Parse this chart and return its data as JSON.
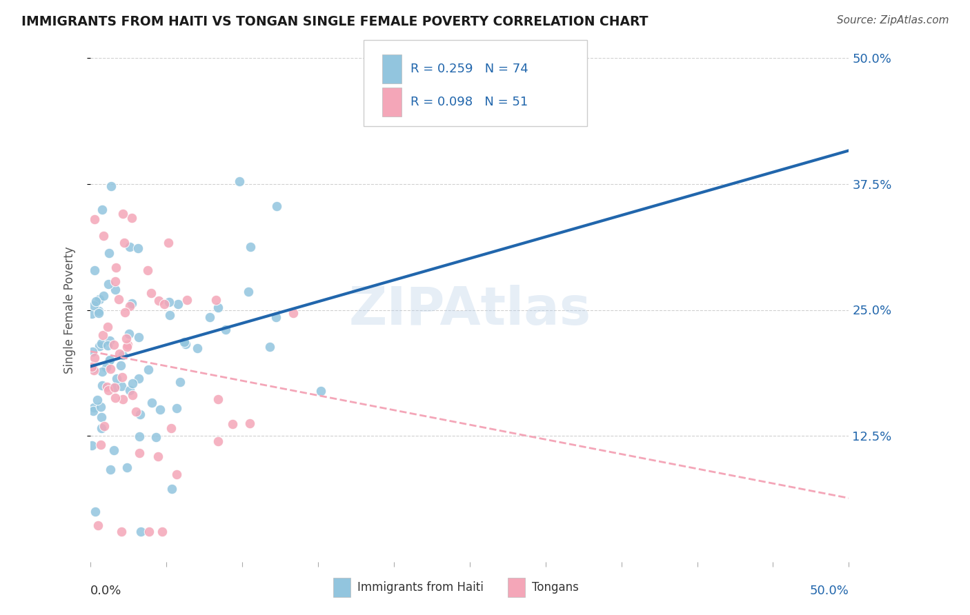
{
  "title": "IMMIGRANTS FROM HAITI VS TONGAN SINGLE FEMALE POVERTY CORRELATION CHART",
  "source": "Source: ZipAtlas.com",
  "ylabel": "Single Female Poverty",
  "legend_label1": "Immigrants from Haiti",
  "legend_label2": "Tongans",
  "r1": 0.259,
  "n1": 74,
  "r2": 0.098,
  "n2": 51,
  "color1": "#92c5de",
  "color2": "#f4a6b8",
  "trendline1_color": "#2166ac",
  "trendline2_color": "#f4a6b8",
  "watermark": "ZIPAtlas",
  "background_color": "#ffffff",
  "grid_color": "#d0d0d0",
  "title_color": "#1a1a1a",
  "source_color": "#555555",
  "axis_label_color": "#2166ac",
  "ylabel_color": "#555555"
}
